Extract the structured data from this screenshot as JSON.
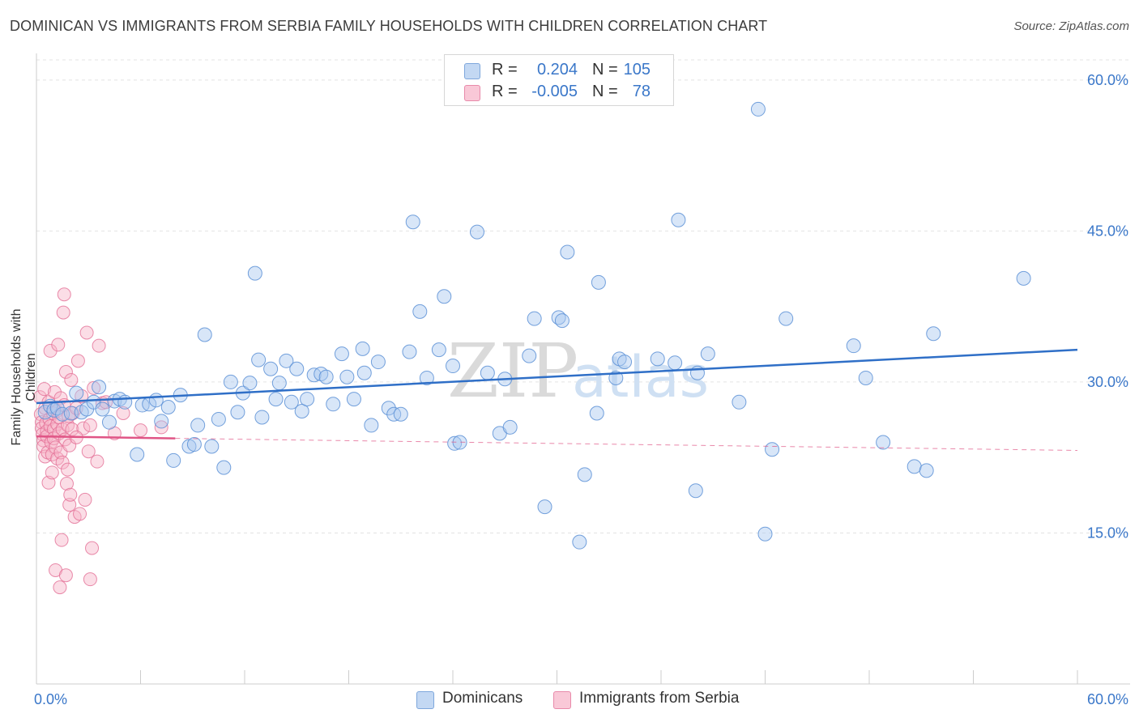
{
  "header": {
    "title": "DOMINICAN VS IMMIGRANTS FROM SERBIA FAMILY HOUSEHOLDS WITH CHILDREN CORRELATION CHART",
    "source": "Source: ZipAtlas.com"
  },
  "legend": {
    "rows": [
      {
        "r_label": "R =",
        "r_value": "0.204",
        "n_label": "N =",
        "n_value": "105"
      },
      {
        "r_label": "R =",
        "r_value": "-0.005",
        "n_label": "N =",
        "n_value": "78"
      }
    ]
  },
  "bottom_legend": {
    "series1": "Dominicans",
    "series2": "Immigrants from Serbia"
  },
  "watermark": {
    "zip": "ZIP",
    "atlas": "atlas"
  },
  "colors": {
    "blue_fill": "#a9c8f0",
    "blue_stroke": "#5c90d6",
    "blue_line": "#2f6fc7",
    "pink_fill": "#f7b3c8",
    "pink_stroke": "#e46f96",
    "pink_line": "#e05586",
    "tick_label": "#3a77c9",
    "grid": "#e3e3e3"
  },
  "chart_data": {
    "type": "scatter",
    "title": "DOMINICAN VS IMMIGRANTS FROM SERBIA FAMILY HOUSEHOLDS WITH CHILDREN CORRELATION CHART",
    "xlabel": "",
    "ylabel": "Family Households with Children",
    "xlim": [
      0,
      60
    ],
    "ylim": [
      0,
      62
    ],
    "x_tick_labels": [
      "0.0%",
      "60.0%"
    ],
    "y_ticks": [
      15,
      30,
      45,
      60
    ],
    "y_tick_labels": [
      "15.0%",
      "30.0%",
      "45.0%",
      "60.0%"
    ],
    "grid": true,
    "legend_position": "top-center",
    "series": [
      {
        "name": "Dominicans",
        "R": 0.204,
        "N": 105,
        "trend": {
          "x0": 0.0,
          "y0": 27.9,
          "x1": 60.0,
          "y1": 33.2,
          "style": "solid"
        },
        "points": [
          [
            0.5,
            27.0
          ],
          [
            0.8,
            27.6
          ],
          [
            1.0,
            27.2
          ],
          [
            1.2,
            27.4
          ],
          [
            1.5,
            26.8
          ],
          [
            2.0,
            26.9
          ],
          [
            2.3,
            28.9
          ],
          [
            2.6,
            27.0
          ],
          [
            2.9,
            27.3
          ],
          [
            3.3,
            28.0
          ],
          [
            3.6,
            29.5
          ],
          [
            3.8,
            27.3
          ],
          [
            4.2,
            26.0
          ],
          [
            4.5,
            28.1
          ],
          [
            4.8,
            28.3
          ],
          [
            5.1,
            28.0
          ],
          [
            5.8,
            22.8
          ],
          [
            6.1,
            27.7
          ],
          [
            6.5,
            27.8
          ],
          [
            6.9,
            28.2
          ],
          [
            7.2,
            26.1
          ],
          [
            7.6,
            27.5
          ],
          [
            7.9,
            22.2
          ],
          [
            8.3,
            28.7
          ],
          [
            8.8,
            23.6
          ],
          [
            9.1,
            23.8
          ],
          [
            9.3,
            25.7
          ],
          [
            9.7,
            34.7
          ],
          [
            10.1,
            23.6
          ],
          [
            10.5,
            26.3
          ],
          [
            10.8,
            21.5
          ],
          [
            11.2,
            30.0
          ],
          [
            11.6,
            27.0
          ],
          [
            11.9,
            28.9
          ],
          [
            12.3,
            29.9
          ],
          [
            12.6,
            40.8
          ],
          [
            12.8,
            32.2
          ],
          [
            13.0,
            26.5
          ],
          [
            13.5,
            31.3
          ],
          [
            13.8,
            28.3
          ],
          [
            14.0,
            29.9
          ],
          [
            14.4,
            32.1
          ],
          [
            14.7,
            28.0
          ],
          [
            15.0,
            31.3
          ],
          [
            15.3,
            27.1
          ],
          [
            15.6,
            28.3
          ],
          [
            16.0,
            30.7
          ],
          [
            16.4,
            30.8
          ],
          [
            16.7,
            30.5
          ],
          [
            17.1,
            27.8
          ],
          [
            17.6,
            32.8
          ],
          [
            17.9,
            30.5
          ],
          [
            18.3,
            28.3
          ],
          [
            18.8,
            33.3
          ],
          [
            18.9,
            30.9
          ],
          [
            19.3,
            25.7
          ],
          [
            19.7,
            32.0
          ],
          [
            20.3,
            27.4
          ],
          [
            20.6,
            26.8
          ],
          [
            21.0,
            26.8
          ],
          [
            21.5,
            33.0
          ],
          [
            21.7,
            45.9
          ],
          [
            22.1,
            37.0
          ],
          [
            22.5,
            30.4
          ],
          [
            23.2,
            33.2
          ],
          [
            23.5,
            38.5
          ],
          [
            24.0,
            31.6
          ],
          [
            24.1,
            23.9
          ],
          [
            24.4,
            24.0
          ],
          [
            25.4,
            44.9
          ],
          [
            26.0,
            30.9
          ],
          [
            26.7,
            24.9
          ],
          [
            27.0,
            30.3
          ],
          [
            27.3,
            25.5
          ],
          [
            28.4,
            32.6
          ],
          [
            28.7,
            36.3
          ],
          [
            29.3,
            17.6
          ],
          [
            30.1,
            36.4
          ],
          [
            30.3,
            36.1
          ],
          [
            30.6,
            42.9
          ],
          [
            31.3,
            14.1
          ],
          [
            31.6,
            20.8
          ],
          [
            32.3,
            26.9
          ],
          [
            32.4,
            39.9
          ],
          [
            33.4,
            30.4
          ],
          [
            33.6,
            32.3
          ],
          [
            33.9,
            32.0
          ],
          [
            35.8,
            32.3
          ],
          [
            36.8,
            31.9
          ],
          [
            37.0,
            46.1
          ],
          [
            38.0,
            19.2
          ],
          [
            38.1,
            30.9
          ],
          [
            38.7,
            32.8
          ],
          [
            40.5,
            28.0
          ],
          [
            41.6,
            57.1
          ],
          [
            42.0,
            14.9
          ],
          [
            42.4,
            23.3
          ],
          [
            43.2,
            36.3
          ],
          [
            47.1,
            33.6
          ],
          [
            48.8,
            24.0
          ],
          [
            50.6,
            21.6
          ],
          [
            51.3,
            21.2
          ],
          [
            51.7,
            34.8
          ],
          [
            56.9,
            40.3
          ],
          [
            47.8,
            30.4
          ]
        ]
      },
      {
        "name": "Immigrants from Serbia",
        "R": -0.005,
        "N": 78,
        "trend_solid": {
          "x0": 0.0,
          "y0": 24.6,
          "x1": 8.0,
          "y1": 24.4
        },
        "trend_dashed": {
          "x0": 8.0,
          "y0": 24.4,
          "x1": 60.0,
          "y1": 23.2
        },
        "points": [
          [
            0.2,
            28.5
          ],
          [
            0.25,
            26.8
          ],
          [
            0.3,
            26.0
          ],
          [
            0.3,
            25.4
          ],
          [
            0.35,
            24.8
          ],
          [
            0.4,
            24.2
          ],
          [
            0.4,
            23.6
          ],
          [
            0.45,
            29.3
          ],
          [
            0.5,
            27.4
          ],
          [
            0.5,
            22.6
          ],
          [
            0.55,
            25.9
          ],
          [
            0.6,
            25.1
          ],
          [
            0.6,
            24.6
          ],
          [
            0.65,
            23.0
          ],
          [
            0.7,
            20.0
          ],
          [
            0.7,
            28.0
          ],
          [
            0.75,
            26.3
          ],
          [
            0.8,
            25.6
          ],
          [
            0.8,
            33.1
          ],
          [
            0.85,
            24.0
          ],
          [
            0.9,
            22.8
          ],
          [
            0.9,
            21.0
          ],
          [
            0.95,
            26.9
          ],
          [
            1.0,
            25.3
          ],
          [
            1.0,
            24.4
          ],
          [
            1.05,
            29.0
          ],
          [
            1.1,
            23.5
          ],
          [
            1.1,
            11.3
          ],
          [
            1.15,
            27.1
          ],
          [
            1.2,
            25.8
          ],
          [
            1.2,
            22.4
          ],
          [
            1.25,
            33.7
          ],
          [
            1.3,
            24.9
          ],
          [
            1.3,
            26.5
          ],
          [
            1.35,
            9.6
          ],
          [
            1.4,
            23.0
          ],
          [
            1.4,
            28.4
          ],
          [
            1.45,
            14.3
          ],
          [
            1.5,
            25.3
          ],
          [
            1.5,
            22.0
          ],
          [
            1.55,
            36.9
          ],
          [
            1.6,
            38.7
          ],
          [
            1.6,
            27.7
          ],
          [
            1.65,
            24.3
          ],
          [
            1.7,
            31.0
          ],
          [
            1.7,
            10.8
          ],
          [
            1.75,
            19.9
          ],
          [
            1.8,
            25.7
          ],
          [
            1.8,
            21.3
          ],
          [
            1.85,
            26.6
          ],
          [
            1.9,
            17.8
          ],
          [
            1.9,
            23.7
          ],
          [
            1.95,
            18.8
          ],
          [
            2.0,
            30.2
          ],
          [
            2.05,
            25.3
          ],
          [
            2.1,
            26.9
          ],
          [
            2.2,
            16.6
          ],
          [
            2.3,
            27.4
          ],
          [
            2.4,
            32.1
          ],
          [
            2.5,
            16.9
          ],
          [
            2.6,
            28.6
          ],
          [
            2.7,
            25.4
          ],
          [
            2.8,
            18.3
          ],
          [
            2.9,
            34.9
          ],
          [
            3.0,
            23.1
          ],
          [
            3.1,
            10.4
          ],
          [
            3.3,
            29.4
          ],
          [
            3.5,
            22.1
          ],
          [
            3.6,
            33.6
          ],
          [
            3.8,
            27.9
          ],
          [
            3.1,
            25.7
          ],
          [
            3.2,
            13.5
          ],
          [
            4.0,
            28.0
          ],
          [
            4.5,
            24.9
          ],
          [
            5.0,
            26.9
          ],
          [
            6.0,
            25.2
          ],
          [
            7.2,
            25.5
          ],
          [
            2.3,
            24.5
          ]
        ]
      }
    ]
  }
}
